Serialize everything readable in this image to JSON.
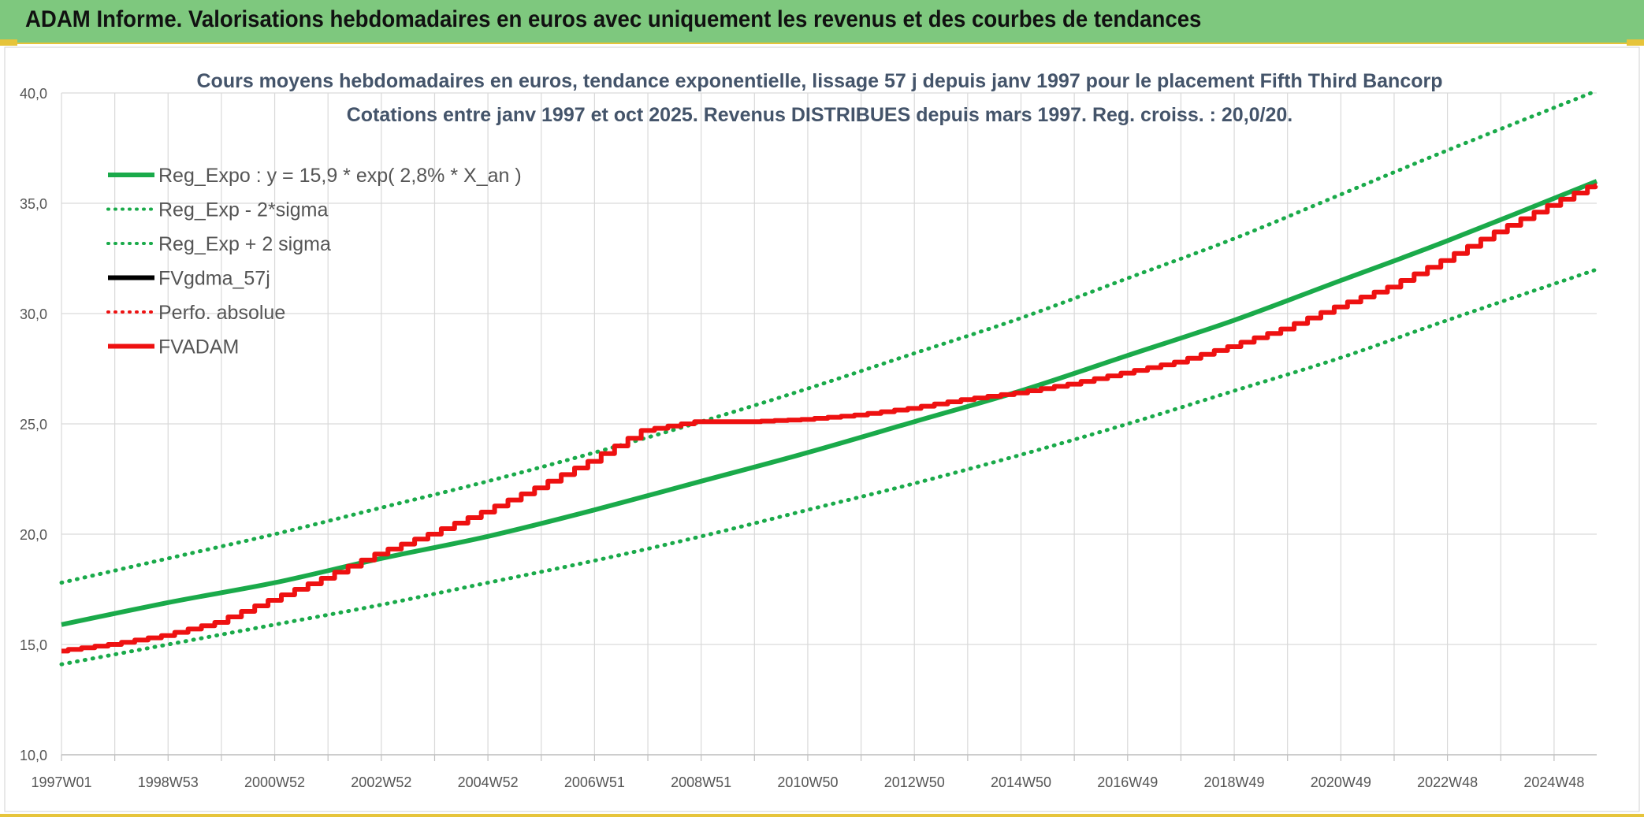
{
  "banner": {
    "title": "ADAM Informe. Valorisations hebdomadaires en euros avec uniquement les revenus et des courbes de tendances"
  },
  "colors": {
    "banner_bg": "#7ec87e",
    "accent_yellow": "#e6c43a",
    "green": "#1aaa4a",
    "red": "#ee1111",
    "black": "#000000",
    "title_text": "#44546a"
  },
  "chart_data": {
    "type": "line",
    "title_line1": "Cours moyens hebdomadaires en euros, tendance exponentielle, lissage 57 j depuis janv 1997 pour le placement Fifth Third Bancorp",
    "title_line2": "Cotations entre janv 1997 et oct 2025. Revenus DISTRIBUES depuis mars 1997. Reg. croiss. : 20,0/20.",
    "xlabel": "",
    "ylabel": "",
    "x_range_years": [
      1997.0,
      2025.8
    ],
    "ylim": [
      10,
      40
    ],
    "y_ticks": [
      "10,0",
      "15,0",
      "20,0",
      "25,0",
      "30,0",
      "35,0",
      "40,0"
    ],
    "y_tick_values": [
      10,
      15,
      20,
      25,
      30,
      35,
      40
    ],
    "x_tick_labels": [
      "1997W01",
      "1998W53",
      "2000W52",
      "2002W52",
      "2004W52",
      "2006W51",
      "2008W51",
      "2010W50",
      "2012W50",
      "2014W50",
      "2016W49",
      "2018W49",
      "2020W49",
      "2022W48",
      "2024W48"
    ],
    "x_tick_years": [
      1997.0,
      1999.0,
      2001.0,
      2003.0,
      2005.0,
      2007.0,
      2009.0,
      2011.0,
      2013.0,
      2015.0,
      2017.0,
      2019.0,
      2021.0,
      2023.0,
      2025.0
    ],
    "grid": true,
    "legend_position": "top-left",
    "legend": [
      {
        "label": "Reg_Expo : y = 15,9 * exp( 2,8% *  X_an )",
        "color": "#1aaa4a",
        "style": "solid"
      },
      {
        "label": "Reg_Exp - 2*sigma",
        "color": "#1aaa4a",
        "style": "dotted"
      },
      {
        "label": "Reg_Exp + 2 sigma",
        "color": "#1aaa4a",
        "style": "dotted"
      },
      {
        "label": "FVgdma_57j",
        "color": "#000000",
        "style": "solid"
      },
      {
        "label": "Perfo. absolue",
        "color": "#ee1111",
        "style": "dotted"
      },
      {
        "label": "FVADAM",
        "color": "#ee1111",
        "style": "solid"
      }
    ],
    "series": [
      {
        "name": "Reg_Expo : y = 15,9 * exp( 2,8% *  X_an )",
        "x": [
          1997,
          1999,
          2001,
          2003,
          2005,
          2007,
          2009,
          2011,
          2013,
          2015,
          2017,
          2019,
          2021,
          2023,
          2025.8
        ],
        "values": [
          15.9,
          16.9,
          17.8,
          18.9,
          19.9,
          21.1,
          22.4,
          23.7,
          25.1,
          26.5,
          28.1,
          29.7,
          31.5,
          33.3,
          36.0
        ]
      },
      {
        "name": "Reg_Exp - 2*sigma",
        "x": [
          1997,
          1999,
          2001,
          2003,
          2005,
          2007,
          2009,
          2011,
          2013,
          2015,
          2017,
          2019,
          2021,
          2023,
          2025.8
        ],
        "values": [
          14.1,
          15.0,
          15.9,
          16.8,
          17.8,
          18.8,
          19.9,
          21.1,
          22.3,
          23.6,
          25.0,
          26.5,
          28.0,
          29.7,
          32.0
        ]
      },
      {
        "name": "Reg_Exp + 2 sigma",
        "x": [
          1997,
          1999,
          2001,
          2003,
          2005,
          2007,
          2009,
          2011,
          2013,
          2015,
          2017,
          2019,
          2021,
          2023,
          2025.8
        ],
        "values": [
          17.8,
          18.9,
          20.0,
          21.2,
          22.4,
          23.7,
          25.1,
          26.6,
          28.2,
          29.8,
          31.6,
          33.4,
          35.4,
          37.4,
          40.1
        ]
      },
      {
        "name": "FVADAM",
        "x": [
          1997,
          1998,
          1999,
          2000,
          2001,
          2002,
          2003,
          2004,
          2005,
          2006,
          2007,
          2008,
          2009,
          2010,
          2011,
          2012,
          2013,
          2014,
          2015,
          2016,
          2017,
          2018,
          2019,
          2020,
          2021,
          2022,
          2023,
          2024,
          2025,
          2025.8
        ],
        "values": [
          14.7,
          15.0,
          15.4,
          16.0,
          17.0,
          18.0,
          19.1,
          20.0,
          21.0,
          22.1,
          23.3,
          24.7,
          25.1,
          25.1,
          25.2,
          25.4,
          25.7,
          26.1,
          26.4,
          26.8,
          27.3,
          27.8,
          28.5,
          29.3,
          30.3,
          31.2,
          32.4,
          33.7,
          34.9,
          35.8
        ]
      }
    ]
  }
}
